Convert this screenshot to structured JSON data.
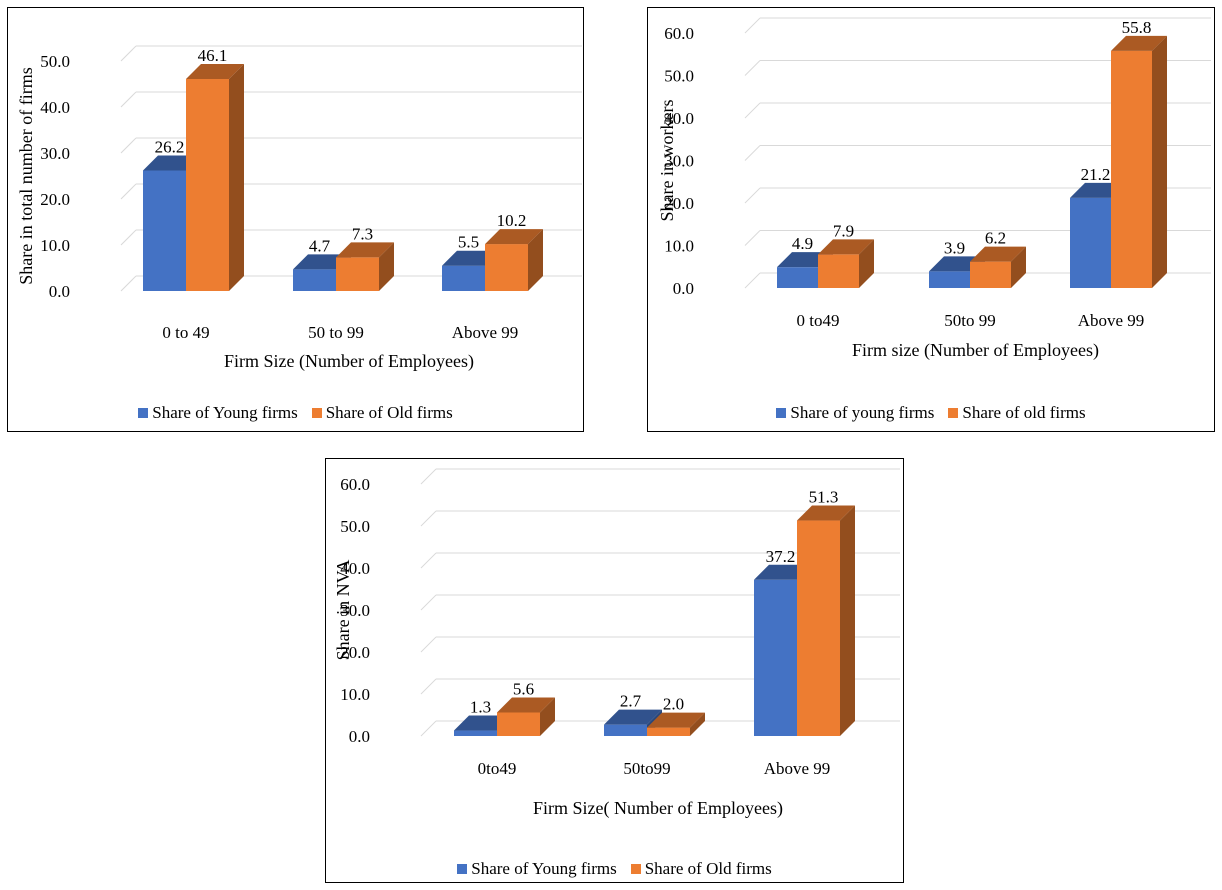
{
  "colors": {
    "young": "#4472C4",
    "old": "#ED7D31"
  },
  "chart_data": [
    {
      "type": "bar",
      "categories": [
        "0 to 49",
        "50 to 99",
        "Above 99"
      ],
      "series": [
        {
          "name": "Share of Young firms",
          "values": [
            26.2,
            4.7,
            5.5
          ]
        },
        {
          "name": "Share of Old firms",
          "values": [
            46.1,
            7.3,
            10.2
          ]
        }
      ],
      "xlabel": "Firm Size (Number of Employees)",
      "ylabel": "Share in total number of firms",
      "yticks": [
        "0.0",
        "10.0",
        "20.0",
        "30.0",
        "40.0",
        "50.0"
      ],
      "ylim": [
        0,
        50
      ],
      "grid": true,
      "legend": "bottom",
      "three_d": true
    },
    {
      "type": "bar",
      "categories": [
        "0 to49",
        "50to 99",
        "Above 99"
      ],
      "series": [
        {
          "name": "Share of young firms",
          "values": [
            4.9,
            3.9,
            21.2
          ]
        },
        {
          "name": "Share of old firms",
          "values": [
            7.9,
            6.2,
            55.8
          ]
        }
      ],
      "xlabel": "Firm size (Number of Employees)",
      "ylabel": "Share in workers",
      "yticks": [
        "0.0",
        "10.0",
        "20.0",
        "30.0",
        "40.0",
        "50.0",
        "60.0"
      ],
      "ylim": [
        0,
        60
      ],
      "grid": true,
      "legend": "bottom",
      "three_d": true
    },
    {
      "type": "bar",
      "categories": [
        "0to49",
        "50to99",
        "Above 99"
      ],
      "series": [
        {
          "name": "Share of Young firms",
          "values": [
            1.3,
            2.7,
            37.2
          ]
        },
        {
          "name": "Share of Old firms",
          "values": [
            5.6,
            2.0,
            51.3
          ]
        }
      ],
      "xlabel": "Firm Size( Number of Employees)",
      "ylabel": "Share in NVA",
      "yticks": [
        "0.0",
        "10.0",
        "20.0",
        "30.0",
        "40.0",
        "50.0",
        "60.0"
      ],
      "ylim": [
        0,
        60
      ],
      "grid": true,
      "legend": "bottom",
      "three_d": true
    }
  ]
}
